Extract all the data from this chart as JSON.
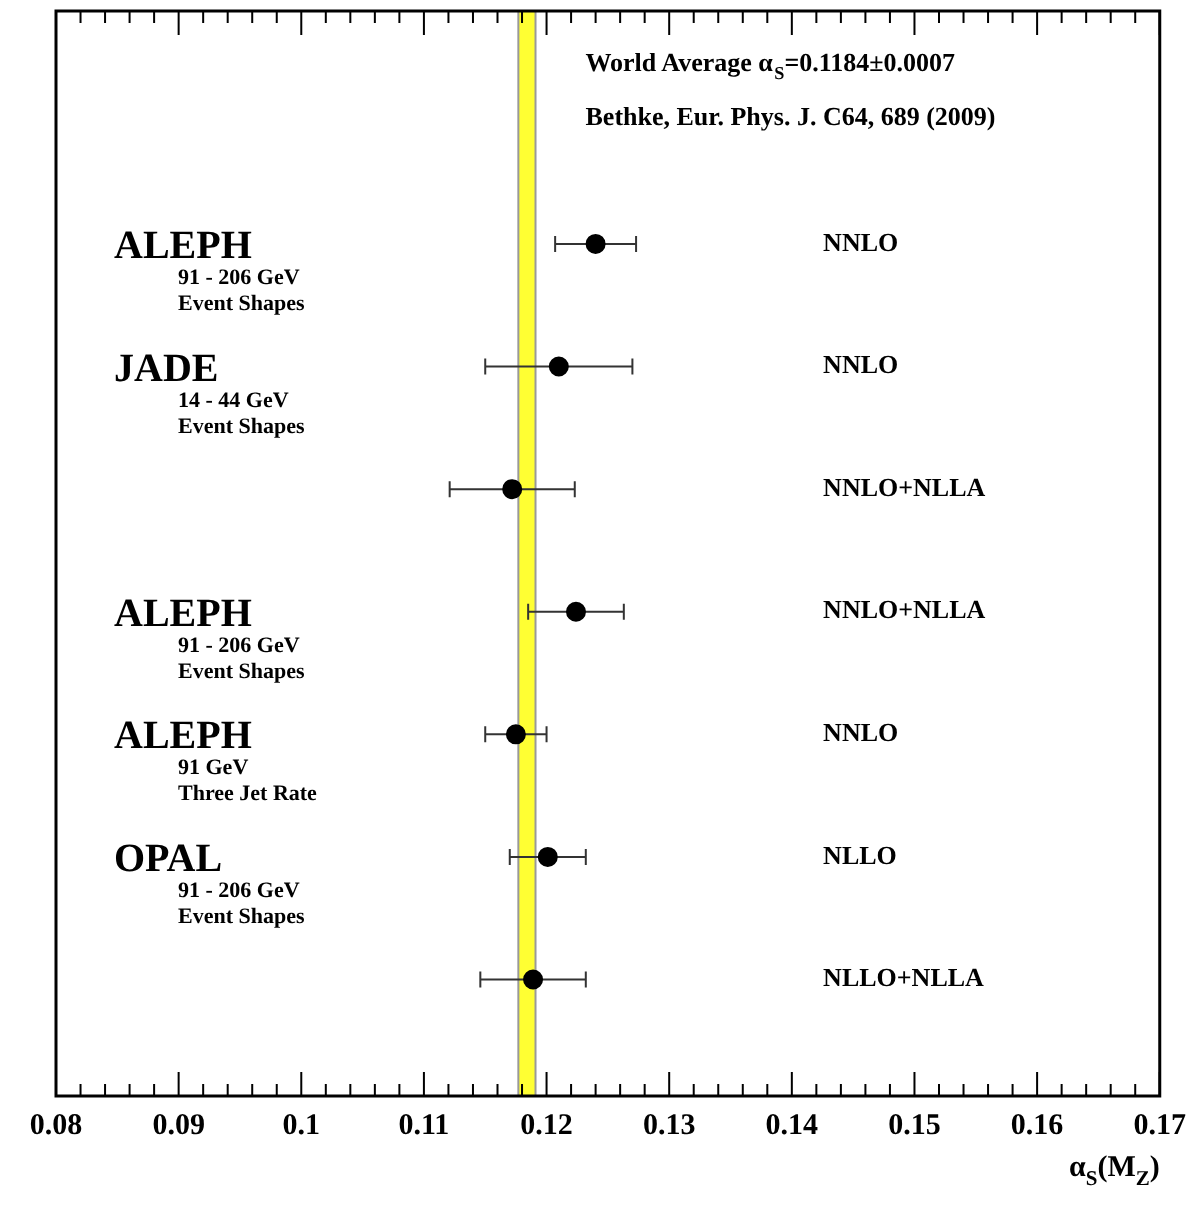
{
  "chart_data": {
    "type": "scatter",
    "orientation": "horizontal",
    "categories": [
      "NNLO",
      "NNLO",
      "NNLO+NLLA",
      "NNLO+NLLA",
      "NNLO",
      "NLLO",
      "NLLO+NLLA"
    ],
    "values": [
      0.124,
      0.121,
      0.1172,
      0.1224,
      0.1175,
      0.1201,
      0.1189
    ],
    "errors": [
      0.0033,
      0.006,
      0.0051,
      0.0039,
      0.0025,
      0.0031,
      0.0043
    ],
    "color": "#000000",
    "marker": "circle",
    "xlim": [
      0.08,
      0.17
    ],
    "xticks": [
      0.08,
      0.09,
      0.1,
      0.11,
      0.12,
      0.13,
      0.14,
      0.15,
      0.16,
      0.17
    ],
    "xlabel": "α$_{S}$(M$_{Z}$)",
    "bands": [
      {
        "axis": "x",
        "from": 0.1177,
        "to": 0.1191,
        "label": "World Average α$_{S}$=0.1184±0.0007",
        "color": "#ffff33"
      }
    ],
    "annotations": [
      "Bethke, Eur. Phys. J. C64, 689 (2009)",
      "ALEPH",
      "91 - 206 GeV",
      "Event Shapes",
      "JADE",
      "14 - 44 GeV",
      "Event Shapes",
      "ALEPH",
      "91 - 206 GeV",
      "Event Shapes",
      "ALEPH",
      "91 GeV",
      "Three Jet Rate",
      "OPAL",
      "91 - 206 GeV",
      "Event Shapes"
    ],
    "grid": false,
    "legend": false
  }
}
